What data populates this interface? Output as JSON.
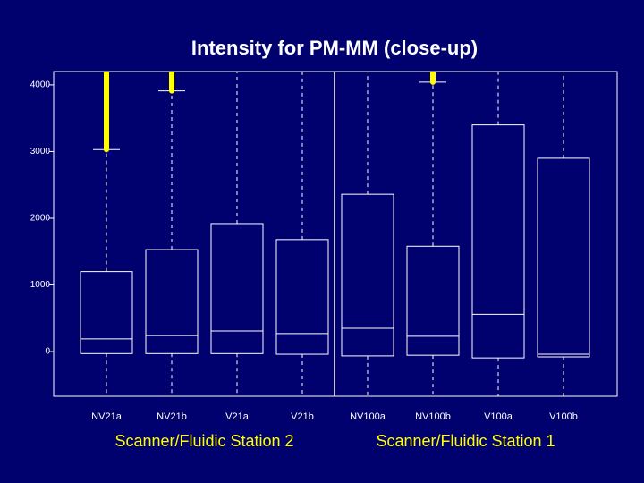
{
  "chart_data": {
    "type": "box",
    "title": "Intensity for PM-MM (close-up)",
    "categories": [
      "NV21a",
      "NV21b",
      "V21a",
      "V21b",
      "NV100a",
      "NV100b",
      "V100a",
      "V100b"
    ],
    "groups": [
      "Scanner/Fluidic Station 2",
      "Scanner/Fluidic Station 1"
    ],
    "boxes": [
      {
        "q1": -30,
        "median": 190,
        "q3": 1200,
        "whisker_high": 3030
      },
      {
        "q1": -30,
        "median": 240,
        "q3": 1530,
        "whisker_high": 3910
      },
      {
        "q1": -30,
        "median": 310,
        "q3": 1920,
        "whisker_high": null
      },
      {
        "q1": -40,
        "median": 270,
        "q3": 1680,
        "whisker_high": null
      },
      {
        "q1": -65,
        "median": 350,
        "q3": 2360,
        "whisker_high": null
      },
      {
        "q1": -55,
        "median": 230,
        "q3": 1580,
        "whisker_high": 4040
      },
      {
        "q1": -95,
        "median": 560,
        "q3": 3400,
        "whisker_high": null
      },
      {
        "q1": -80,
        "median": -40,
        "q3": 2900,
        "whisker_high": null
      }
    ],
    "box_color": "#ffffff",
    "outlier_color": "#ffff00",
    "ylim": [
      -670,
      4200
    ],
    "yticks": [
      0,
      1000,
      2000,
      3000,
      4000
    ]
  }
}
